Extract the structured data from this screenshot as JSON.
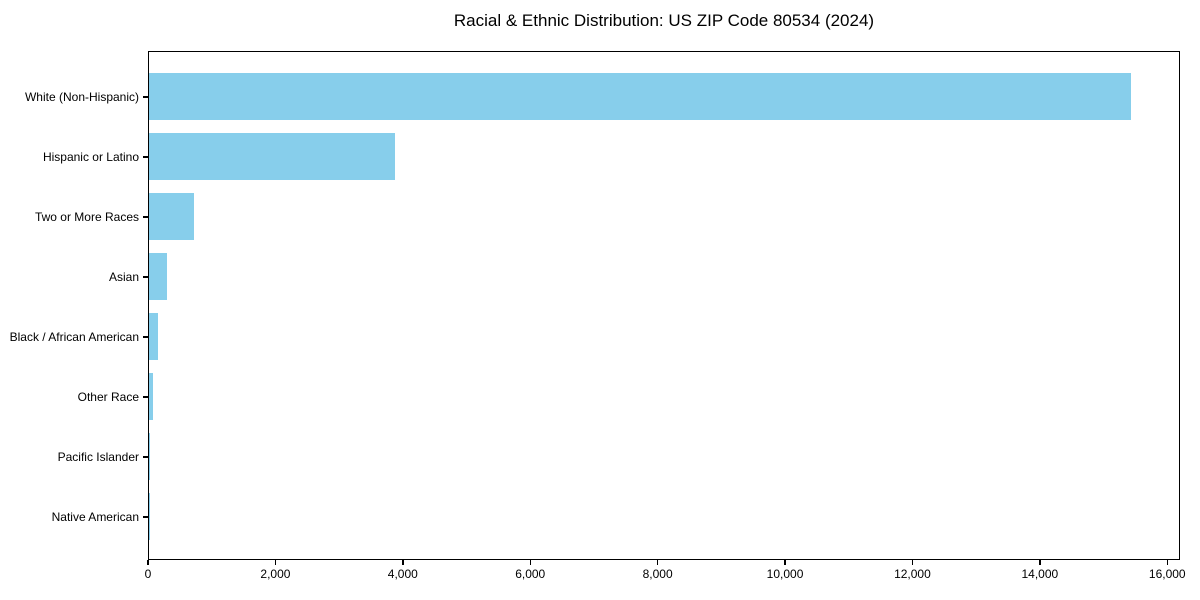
{
  "title": "Racial & Ethnic Distribution: US ZIP Code 80534 (2024)",
  "chart_data": {
    "type": "bar",
    "orientation": "horizontal",
    "title": "Racial & Ethnic Distribution: US ZIP Code 80534 (2024)",
    "categories": [
      "White (Non-Hispanic)",
      "Hispanic or Latino",
      "Two or More Races",
      "Asian",
      "Black / African American",
      "Other Race",
      "Pacific Islander",
      "Native American"
    ],
    "values": [
      15420,
      3860,
      710,
      280,
      145,
      68,
      12,
      5
    ],
    "xlabel": "",
    "ylabel": "",
    "xlim": [
      0,
      16200
    ],
    "x_ticks": [
      0,
      2000,
      4000,
      6000,
      8000,
      10000,
      12000,
      14000,
      16000
    ],
    "x_tick_labels": [
      "0",
      "2,000",
      "4,000",
      "6,000",
      "8,000",
      "10,000",
      "12,000",
      "14,000",
      "16,000"
    ],
    "bar_color": "#87CEEB",
    "grid": false,
    "legend": false
  },
  "colors": {
    "bar": "#87CEEB",
    "axis": "#000000",
    "text": "#000000",
    "background": "#FFFFFF"
  }
}
